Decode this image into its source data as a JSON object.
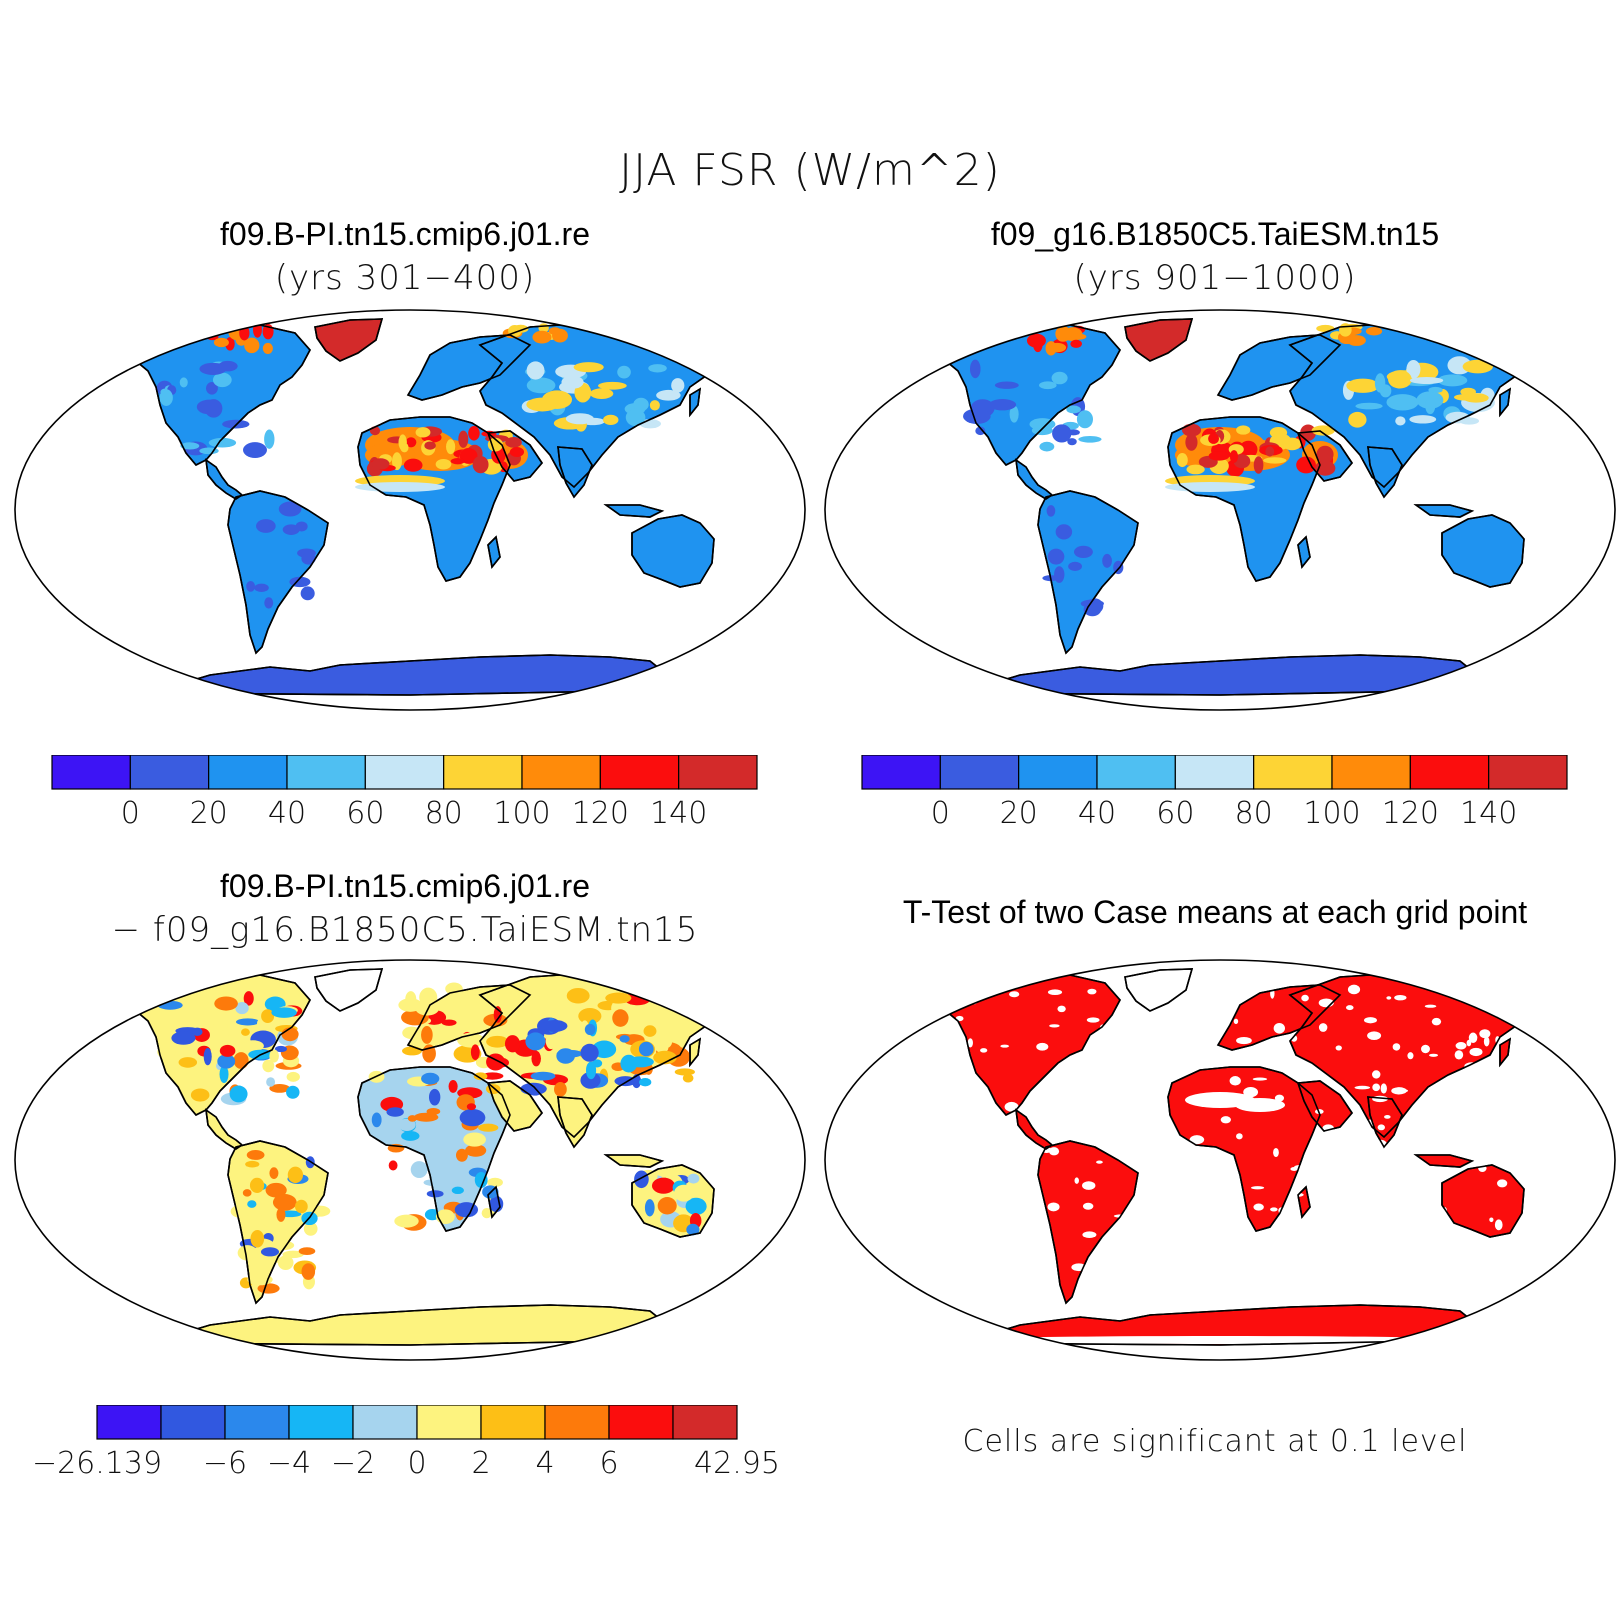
{
  "figure": {
    "title": "JJA FSR (W/m^2)"
  },
  "panels": [
    {
      "id": "case1",
      "title": "f09.B-PI.tn15.cmip6.j01.re",
      "subtitle": "(yrs 301−400)"
    },
    {
      "id": "case2",
      "title": "f09_g16.B1850C5.TaiESM.tn15",
      "subtitle": "(yrs 901−1000)"
    },
    {
      "id": "diff",
      "title": "f09.B-PI.tn15.cmip6.j01.re",
      "subtitle": "− f09_g16.B1850C5.TaiESM.tn15"
    },
    {
      "id": "ttest",
      "title": "T-Test of two Case means at each grid point",
      "note": "Cells are significant at 0.1 level"
    }
  ],
  "colorbars": {
    "abs": {
      "colors": [
        "#3d14f5",
        "#3a5ce0",
        "#1f93f0",
        "#4fbff2",
        "#c6e6f6",
        "#fdd435",
        "#ff8b0a",
        "#fb0d0d",
        "#d32a2a"
      ],
      "labels": [
        "0",
        "20",
        "40",
        "60",
        "80",
        "100",
        "120",
        "140"
      ]
    },
    "diff": {
      "colors": [
        "#3d14f5",
        "#3158e0",
        "#2b88ec",
        "#16b6f5",
        "#a6d4ee",
        "#fdf37f",
        "#fdbf16",
        "#fd7a0b",
        "#fb0d0d",
        "#d32a2a"
      ],
      "labels": [
        "−26.139",
        "−6",
        "−4",
        "−2",
        "0",
        "2",
        "4",
        "6",
        "42.95"
      ]
    }
  },
  "colors": {
    "land_abs": "#2b8ff0",
    "ocean": "#ffffff",
    "diff_land": "#a6d4ee",
    "antarctica_diff": "#fdf37f",
    "ttest_sig": "#fb0d0d",
    "abs_desert": "#fd7a0b",
    "antarctica_abs": "#3a5ce0",
    "greenland_abs": "#d32a2a"
  }
}
